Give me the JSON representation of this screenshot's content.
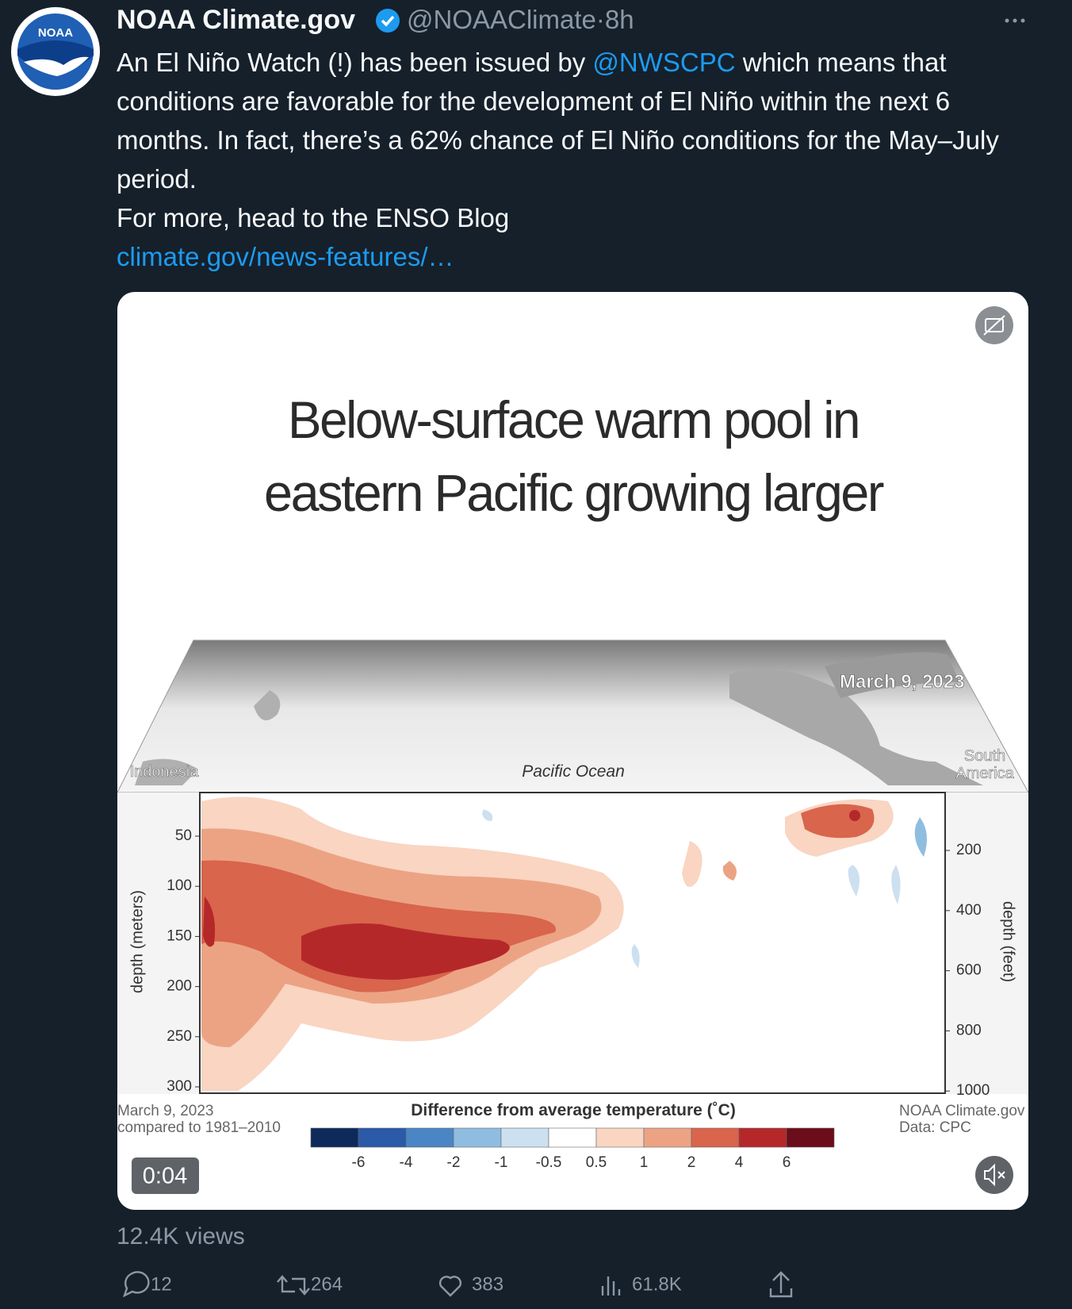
{
  "tweet": {
    "author": {
      "name": "NOAA Climate.gov",
      "handle": "@NOAAClimate",
      "separator": "·",
      "time": "8h",
      "avatar_text": "NOAA"
    },
    "text": {
      "before_mention": "An El Niño Watch (!) has been issued by ",
      "mention": "@NWSCPC",
      "after_mention": " which means that conditions are favorable for the development of El Niño within the next 6 months. In fact, there’s a 62% chance of El Niño conditions for the May–July period.",
      "second_line": "For more, head to the ENSO Blog",
      "link": "climate.gov/news-features/…"
    },
    "media": {
      "title_lines": [
        "Below-surface warm pool in",
        "eastern Pacific growing larger"
      ],
      "date": "March 9, 2023",
      "labels": {
        "indonesia": "Indonesia",
        "pacific": "Pacific Ocean",
        "south_america": [
          "South",
          "America"
        ]
      },
      "y_axis_left": {
        "label": "depth (meters)",
        "ticks": [
          "50",
          "100",
          "150",
          "200",
          "250",
          "300"
        ]
      },
      "y_axis_right": {
        "label": "depth (feet)",
        "ticks": [
          "200",
          "400",
          "600",
          "800",
          "1000"
        ]
      },
      "legend": {
        "title": "Difference from average temperature (˚C)",
        "ticks": [
          "-6",
          "-4",
          "-2",
          "-1",
          "-0.5",
          "0.5",
          "1",
          "2",
          "4",
          "6"
        ],
        "colors": [
          "#0d2a5a",
          "#2a5aa8",
          "#4a86c5",
          "#8fbde0",
          "#cde0f0",
          "#ffffff",
          "#f9d5c2",
          "#eca384",
          "#d8654c",
          "#b5282a",
          "#6b0d1a"
        ]
      },
      "footer_left": [
        "March 9, 2023",
        "compared to 1981–2010"
      ],
      "footer_right": [
        "NOAA Climate.gov",
        "Data: CPC"
      ],
      "duration": "0:04"
    },
    "views": "12.4K views",
    "actions": {
      "replies": "12",
      "retweets": "264",
      "likes": "383",
      "impressions": "61.8K"
    }
  }
}
